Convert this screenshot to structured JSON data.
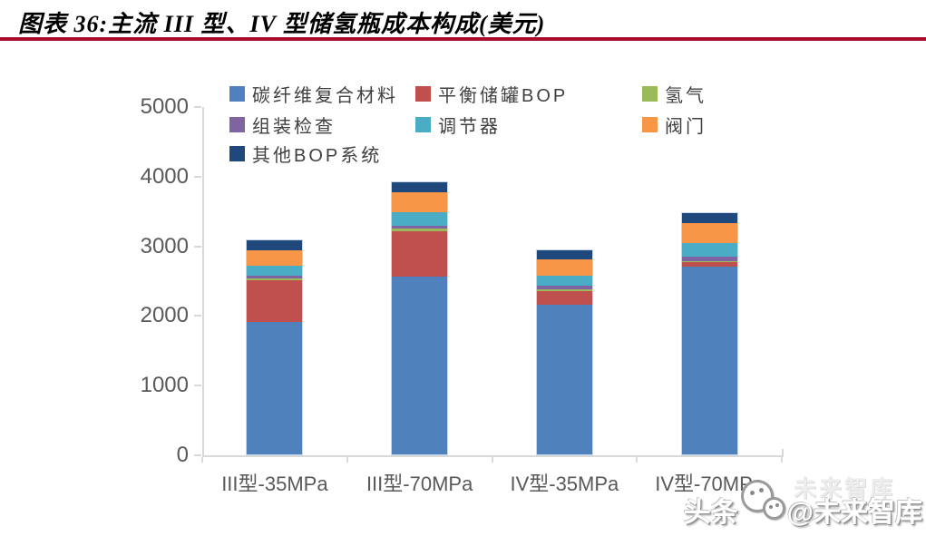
{
  "header": {
    "title": "图表 36:主流 III 型、IV 型储氢瓶成本构成(美元)",
    "divider_color": "#A80D2E"
  },
  "chart_data": {
    "type": "bar",
    "stacked": true,
    "title": "主流III型、IV型储氢瓶成本构成(美元)",
    "categories": [
      "III型-35MPa",
      "III型-70MPa",
      "IV型-35MPa",
      "IV型-70MPa"
    ],
    "series": [
      {
        "name": "碳纤维复合材料",
        "color": "#4F81BD",
        "values": [
          1930,
          2580,
          2180,
          2720
        ]
      },
      {
        "name": "平衡储罐BOP",
        "color": "#C0504D",
        "values": [
          595,
          655,
          190,
          65
        ]
      },
      {
        "name": "氢气",
        "color": "#9BBB59",
        "values": [
          30,
          30,
          25,
          20
        ]
      },
      {
        "name": "组装检查",
        "color": "#8064A2",
        "values": [
          35,
          40,
          50,
          65
        ]
      },
      {
        "name": "调节器",
        "color": "#4BACC6",
        "values": [
          145,
          195,
          150,
          195
        ]
      },
      {
        "name": "阀门",
        "color": "#F79646",
        "values": [
          225,
          285,
          225,
          275
        ]
      },
      {
        "name": "其他BOP系统",
        "color": "#1F497D",
        "values": [
          145,
          145,
          130,
          150
        ]
      }
    ],
    "ylim": [
      0,
      5000
    ],
    "yticks": [
      0,
      1000,
      2000,
      3000,
      4000,
      5000
    ],
    "legend_position": "top",
    "grid": false,
    "axis_color": "#D9D9D9",
    "tick_label_color": "#595959"
  },
  "watermark": {
    "text_left": "头条",
    "text_right": "@未来智库",
    "ghost_text": "未来智库",
    "logo": "toutiao-smiley-logo"
  }
}
